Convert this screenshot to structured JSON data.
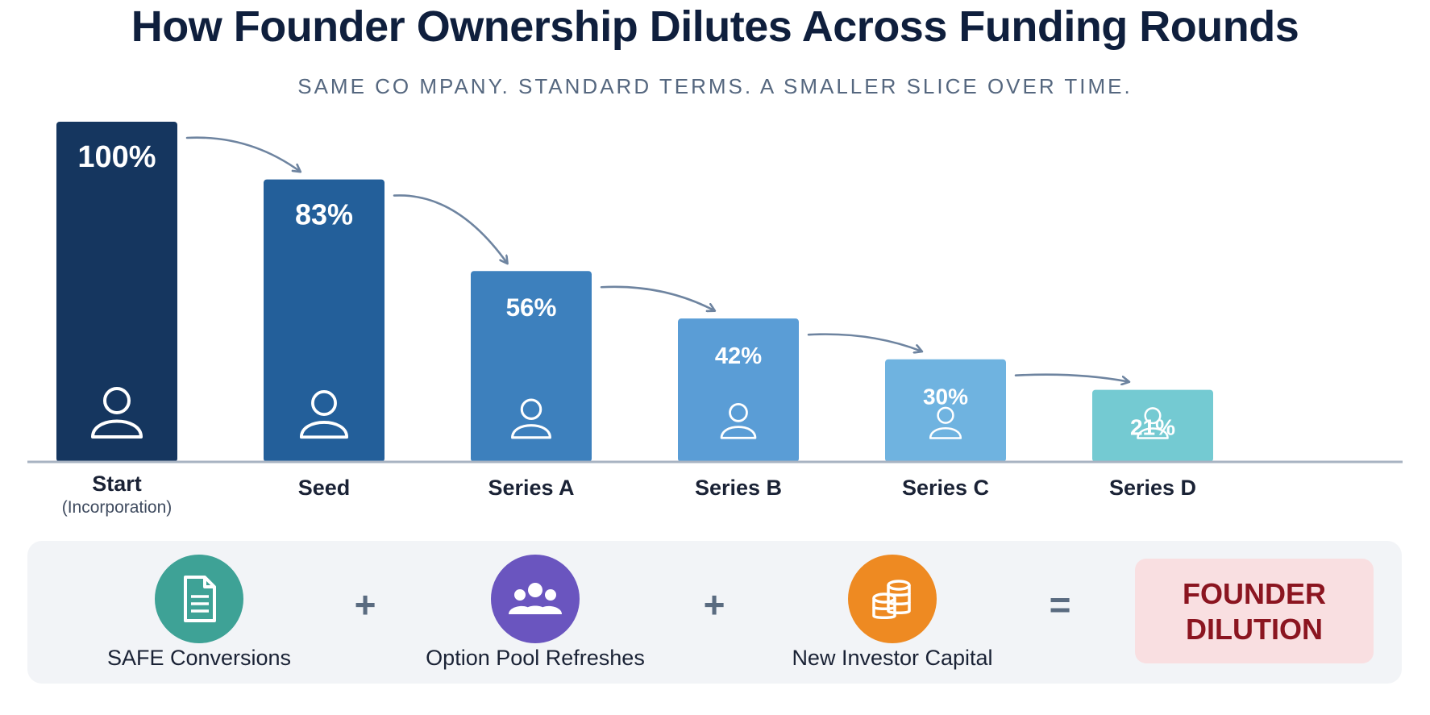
{
  "title": "How Founder Ownership Dilutes Across Funding Rounds",
  "subtitle": "SAME CO MPANY. STANDARD TERMS. A SMALLER SLICE OVER TIME.",
  "chart_data": {
    "type": "bar",
    "categories": [
      "Start",
      "Seed",
      "Series A",
      "Series B",
      "Series C",
      "Series D"
    ],
    "category_sublabels": [
      "(Incorporation)",
      "",
      "",
      "",
      "",
      ""
    ],
    "values": [
      100,
      83,
      56,
      42,
      30,
      21
    ],
    "value_labels": [
      "100%",
      "83%",
      "56%",
      "42%",
      "30%",
      "21%"
    ],
    "colors": [
      "#15365f",
      "#235f9a",
      "#3d80bd",
      "#5a9dd6",
      "#6fb3e0",
      "#74cad2"
    ],
    "title": "How Founder Ownership Dilutes Across Funding Rounds",
    "xlabel": "",
    "ylabel": "",
    "ylim": [
      0,
      100
    ],
    "grid": false,
    "legend": "none",
    "icons": "person-icon",
    "connectors": "curved-arrow"
  },
  "factors": [
    {
      "label": "SAFE Conversions",
      "icon": "document-icon",
      "color": "#3ea296"
    },
    {
      "label": "Option Pool Refreshes",
      "icon": "people-group-icon",
      "color": "#6a55bf"
    },
    {
      "label": "New Investor Capital",
      "icon": "coins-icon",
      "color": "#ee8a22"
    }
  ],
  "operators": {
    "plus1": "+",
    "plus2": "+",
    "equals": "="
  },
  "result": {
    "line1": "FOUNDER",
    "line2": "DILUTION",
    "bg_color": "#f9dfe1",
    "text_color": "#8b1520"
  }
}
